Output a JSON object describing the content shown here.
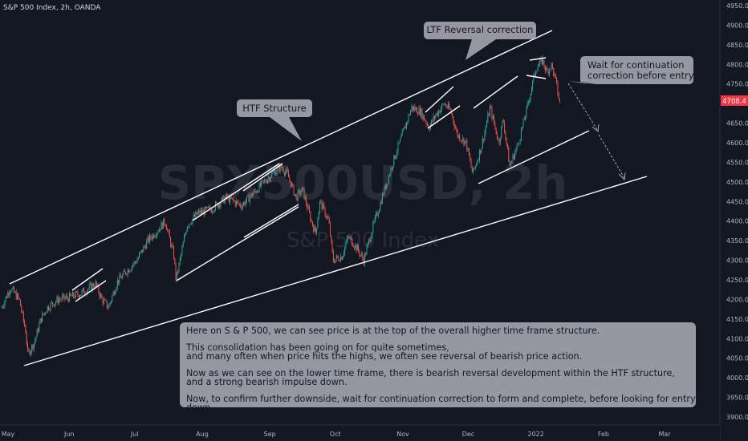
{
  "header": {
    "symbol_title": "S&P 500 Index, 2h, OANDA"
  },
  "watermark": {
    "symbol": "SPX500USD, 2h",
    "name": "S&P 500 Index"
  },
  "price_axis": {
    "labels": [
      "4950.0",
      "4900.0",
      "4850.0",
      "4800.0",
      "4750.0",
      "4700.0",
      "4650.0",
      "4600.0",
      "4550.0",
      "4500.0",
      "4450.0",
      "4400.0",
      "4350.0",
      "4300.0",
      "4250.0",
      "4200.0",
      "4150.0",
      "4100.0",
      "4050.0",
      "4000.0",
      "3950.0",
      "3900.0"
    ],
    "current_price": "4708.4",
    "current_color": "#f23645"
  },
  "time_axis": {
    "labels": [
      "May",
      "Jun",
      "Jul",
      "Aug",
      "Sep",
      "Oct",
      "Nov",
      "Dec",
      "2022",
      "Feb",
      "Mar"
    ]
  },
  "callouts": {
    "htf_structure": "HTF Structure",
    "ltf_reversal": "LTF Reversal correction",
    "wait_line1": "Wait for continuation",
    "wait_line2": "correction before entry"
  },
  "note": {
    "p1": "Here on S & P 500, we can see price is at the top of the overall higher time frame structure.",
    "p2a": "This consolidation has been going on for quite sometimes,",
    "p2b": "and many often when price hits the highs, we often see reversal of bearish price action.",
    "p3a": "Now as we can see on the lower time frame, there is bearish reversal development within the HTF structure,",
    "p3b": "and a strong bearish impulse down.",
    "p4": "Now, to confirm further downside, wait for continuation correction to form and complete, before looking for entry down."
  },
  "colors": {
    "background": "#131722",
    "up": "#26a69a",
    "down": "#ef5350",
    "line": "#ffffff",
    "callout": "#9598a1"
  },
  "chart_data": {
    "type": "line",
    "title": "S&P 500 Index, 2h, OANDA",
    "x_unit": "date",
    "ylim": [
      3880,
      4960
    ],
    "x_range": [
      "2021-05-01",
      "2022-03-08"
    ],
    "series": [
      {
        "x": [
          "2021-05-01",
          "2021-05-05",
          "2021-05-09",
          "2021-05-12",
          "2021-05-13",
          "2021-05-16",
          "2021-05-19",
          "2021-05-22",
          "2021-05-27",
          "2021-06-01",
          "2021-06-06",
          "2021-06-09",
          "2021-06-13",
          "2021-06-16",
          "2021-06-19",
          "2021-06-23",
          "2021-06-27",
          "2021-07-02",
          "2021-07-07",
          "2021-07-12",
          "2021-07-15",
          "2021-07-19",
          "2021-07-20",
          "2021-07-25",
          "2021-07-30",
          "2021-08-05",
          "2021-08-12",
          "2021-08-19",
          "2021-08-26",
          "2021-09-02",
          "2021-09-06",
          "2021-09-09",
          "2021-09-13",
          "2021-09-16",
          "2021-09-20",
          "2021-09-22",
          "2021-09-24",
          "2021-09-28",
          "2021-09-30",
          "2021-10-04",
          "2021-10-07",
          "2021-10-11",
          "2021-10-14",
          "2021-10-18",
          "2021-10-23",
          "2021-10-28",
          "2021-11-02",
          "2021-11-05",
          "2021-11-09",
          "2021-11-13",
          "2021-11-16",
          "2021-11-20",
          "2021-11-23",
          "2021-11-26",
          "2021-11-30",
          "2021-12-03",
          "2021-12-07",
          "2021-12-11",
          "2021-12-15",
          "2021-12-17",
          "2021-12-20",
          "2021-12-24",
          "2021-12-28",
          "2022-01-01",
          "2022-01-04",
          "2022-01-06",
          "2022-01-08",
          "2022-01-10",
          "2022-01-12"
        ],
        "values": [
          4180,
          4230,
          4200,
          4120,
          4060,
          4090,
          4150,
          4180,
          4200,
          4205,
          4215,
          4225,
          4240,
          4200,
          4180,
          4245,
          4270,
          4300,
          4350,
          4380,
          4400,
          4310,
          4250,
          4390,
          4420,
          4430,
          4460,
          4440,
          4480,
          4520,
          4540,
          4520,
          4460,
          4480,
          4400,
          4370,
          4450,
          4400,
          4300,
          4310,
          4360,
          4330,
          4300,
          4380,
          4470,
          4560,
          4640,
          4690,
          4680,
          4640,
          4670,
          4700,
          4680,
          4620,
          4600,
          4520,
          4590,
          4690,
          4600,
          4660,
          4540,
          4600,
          4690,
          4790,
          4810,
          4780,
          4800,
          4760,
          4700
        ]
      }
    ],
    "annotations": [
      {
        "label": "HTF Structure",
        "x": "2021-09-01",
        "y": 4660
      },
      {
        "label": "LTF Reversal correction",
        "x": "2021-12-25",
        "y": 4860
      },
      {
        "label": "Wait for continuation correction before entry",
        "x": "2022-02-01",
        "y": 4760
      }
    ]
  }
}
